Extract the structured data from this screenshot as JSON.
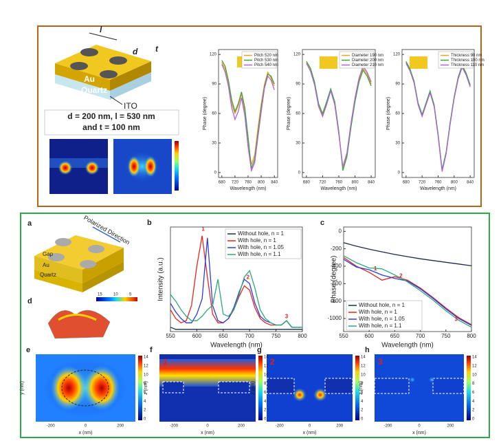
{
  "chart_data": [
    {
      "type": "line",
      "x_label": "Wavelength (nm)",
      "y_label": "Phase (degree)",
      "legend": "upper right",
      "x": [
        680,
        690,
        700,
        710,
        720,
        730,
        740,
        750,
        760,
        770,
        780,
        790,
        800,
        810,
        820,
        830,
        840
      ],
      "series": [
        {
          "name": "Pitch 520 nm",
          "color": "#f5a020",
          "values": [
            112,
            105,
            92,
            70,
            60,
            68,
            80,
            62,
            30,
            8,
            18,
            45,
            70,
            90,
            102,
            96,
            88
          ]
        },
        {
          "name": "Pitch 530 nm",
          "color": "#3aa83a",
          "values": [
            114,
            108,
            94,
            74,
            62,
            70,
            82,
            66,
            36,
            4,
            14,
            40,
            66,
            88,
            100,
            98,
            90
          ]
        },
        {
          "name": "Pitch 540 nm",
          "color": "#b060e0",
          "values": [
            110,
            102,
            88,
            66,
            54,
            62,
            76,
            58,
            26,
            2,
            10,
            36,
            62,
            86,
            98,
            94,
            84
          ]
        }
      ],
      "xlim": [
        670,
        850
      ],
      "ylim": [
        -5,
        125
      ],
      "xticks": [
        680,
        720,
        760,
        800,
        840
      ],
      "yticks": [
        0,
        30,
        60,
        90,
        120
      ]
    },
    {
      "type": "line",
      "x_label": "Wavelength (nm)",
      "y_label": "Phase (degree)",
      "legend": "upper right",
      "x": [
        680,
        690,
        700,
        710,
        720,
        730,
        740,
        750,
        760,
        770,
        780,
        790,
        800,
        810,
        820,
        830,
        840
      ],
      "series": [
        {
          "name": "Diameter 190 nm",
          "color": "#f5a020",
          "values": [
            112,
            104,
            90,
            68,
            58,
            70,
            84,
            70,
            40,
            4,
            18,
            48,
            74,
            94,
            106,
            100,
            90
          ]
        },
        {
          "name": "Diameter 200 nm",
          "color": "#3aa83a",
          "values": [
            113,
            106,
            92,
            70,
            60,
            72,
            85,
            72,
            42,
            2,
            16,
            46,
            72,
            92,
            104,
            98,
            88
          ]
        },
        {
          "name": "Diameter 210 nm",
          "color": "#b060e0",
          "values": [
            111,
            103,
            89,
            67,
            57,
            69,
            83,
            69,
            39,
            6,
            20,
            50,
            76,
            96,
            108,
            102,
            92
          ]
        }
      ],
      "xlim": [
        670,
        850
      ],
      "ylim": [
        -5,
        125
      ],
      "xticks": [
        680,
        720,
        760,
        800,
        840
      ],
      "yticks": [
        0,
        30,
        60,
        90,
        120
      ]
    },
    {
      "type": "line",
      "x_label": "Wavelength (nm)",
      "y_label": "Phase (degree)",
      "legend": "upper right",
      "x": [
        680,
        690,
        700,
        710,
        720,
        730,
        740,
        750,
        760,
        770,
        780,
        790,
        800,
        810,
        820,
        830,
        840
      ],
      "series": [
        {
          "name": "Thickness 90 nm",
          "color": "#f5a020",
          "values": [
            112,
            104,
            92,
            70,
            58,
            70,
            82,
            68,
            38,
            2,
            20,
            50,
            76,
            96,
            108,
            100,
            88
          ]
        },
        {
          "name": "Thickness 100 nm",
          "color": "#3aa83a",
          "values": [
            113,
            105,
            93,
            71,
            59,
            71,
            83,
            69,
            39,
            3,
            21,
            51,
            77,
            97,
            109,
            101,
            89
          ]
        },
        {
          "name": "Thickness 110 nm",
          "color": "#b060e0",
          "values": [
            111,
            103,
            91,
            69,
            57,
            69,
            81,
            67,
            37,
            1,
            19,
            49,
            75,
            95,
            107,
            99,
            87
          ]
        }
      ],
      "xlim": [
        670,
        850
      ],
      "ylim": [
        -5,
        125
      ],
      "xticks": [
        680,
        720,
        760,
        800,
        840
      ],
      "yticks": [
        0,
        30,
        60,
        90,
        120
      ]
    },
    {
      "type": "line",
      "panel": "b",
      "x_label": "Wavelength (nm)",
      "y_label": "Intensity (a.u.)",
      "legend": "upper right",
      "annotations": [
        "1",
        "2",
        "3"
      ],
      "x": [
        550,
        560,
        570,
        580,
        590,
        600,
        610,
        620,
        630,
        640,
        650,
        660,
        670,
        680,
        690,
        700,
        710,
        720,
        730,
        740,
        750,
        760,
        770,
        780,
        790,
        800
      ],
      "series": [
        {
          "name": "Without hole, n = 1",
          "color": "#1a2a4a",
          "values": [
            0.02,
            0.01,
            0.01,
            0.01,
            0.01,
            0.01,
            0.01,
            0.01,
            0.01,
            0.01,
            0.01,
            0.01,
            0.01,
            0.01,
            0.01,
            0.01,
            0.01,
            0.01,
            0.01,
            0.01,
            0.01,
            0.01,
            0.01,
            0.01,
            0.01,
            0.01
          ]
        },
        {
          "name": "With hole, n = 1",
          "color": "#e8241c",
          "values": [
            0.1,
            0.06,
            0.04,
            0.05,
            0.12,
            0.3,
            0.44,
            0.25,
            0.08,
            0.04,
            0.04,
            0.06,
            0.1,
            0.16,
            0.21,
            0.19,
            0.11,
            0.06,
            0.04,
            0.03,
            0.03,
            0.03,
            0.05,
            0.02,
            0.02,
            0.02
          ]
        },
        {
          "name": "With hole, n = 1.05",
          "color": "#2a3ae0",
          "values": [
            0.13,
            0.09,
            0.06,
            0.04,
            0.04,
            0.08,
            0.15,
            0.43,
            0.12,
            0.05,
            0.04,
            0.06,
            0.11,
            0.18,
            0.24,
            0.22,
            0.13,
            0.07,
            0.05,
            0.04,
            0.03,
            0.03,
            0.05,
            0.02,
            0.02,
            0.02
          ]
        },
        {
          "name": "With hole, n = 1.1",
          "color": "#2aa878",
          "values": [
            0.17,
            0.14,
            0.1,
            0.07,
            0.05,
            0.05,
            0.07,
            0.1,
            0.12,
            0.24,
            0.08,
            0.07,
            0.1,
            0.17,
            0.25,
            0.28,
            0.2,
            0.1,
            0.06,
            0.04,
            0.03,
            0.03,
            0.05,
            0.02,
            0.02,
            0.02
          ]
        }
      ],
      "xlim": [
        550,
        800
      ],
      "ylim": [
        0,
        0.48
      ],
      "xticks": [
        550,
        600,
        650,
        700,
        750,
        800
      ]
    },
    {
      "type": "line",
      "panel": "c",
      "x_label": "Wavelength (nm)",
      "y_label": "Phase (degree)",
      "legend": "lower left",
      "annotations": [
        "1",
        "2",
        "3"
      ],
      "x": [
        550,
        575,
        600,
        625,
        650,
        675,
        700,
        725,
        750,
        775,
        800
      ],
      "series": [
        {
          "name": "Without hole, n = 1",
          "color": "#1a2a4a",
          "values": [
            -130,
            -170,
            -205,
            -235,
            -265,
            -290,
            -315,
            -335,
            -355,
            -375,
            -395
          ]
        },
        {
          "name": "With hole, n = 1",
          "color": "#e8241c",
          "values": [
            -300,
            -400,
            -470,
            -560,
            -520,
            -560,
            -650,
            -760,
            -880,
            -990,
            -1070
          ]
        },
        {
          "name": "With hole, n = 1.05",
          "color": "#2a3ae0",
          "values": [
            -320,
            -410,
            -440,
            -500,
            -540,
            -570,
            -660,
            -770,
            -890,
            -1000,
            -1080
          ]
        },
        {
          "name": "With hole, n = 1.1",
          "color": "#2aa878",
          "values": [
            -280,
            -360,
            -420,
            -430,
            -500,
            -580,
            -680,
            -790,
            -910,
            -1020,
            -1100
          ]
        }
      ],
      "xlim": [
        550,
        800
      ],
      "ylim": [
        -1150,
        50
      ],
      "xticks": [
        550,
        600,
        650,
        700,
        750,
        800
      ],
      "yticks": [
        0,
        -200,
        -400,
        -600,
        -800,
        -1000
      ]
    }
  ],
  "figure": {
    "schematic": {
      "l": "l",
      "d": "d",
      "t": "t",
      "au": "Au",
      "quartz": "Quartz",
      "ito": "ITO"
    },
    "params": {
      "line1": "d = 200 nm, l = 530 nm",
      "line2": "and t = 100 nm"
    },
    "panel_a": {
      "label": "a",
      "direction": "Polarized Direction",
      "gap": "Gap",
      "au": "Au",
      "quartz": "Quartz"
    },
    "panel_d": {
      "label": "d",
      "colorbar": [
        "15",
        "10",
        "5"
      ]
    },
    "fields": {
      "labels": [
        "e",
        "f",
        "g",
        "h"
      ],
      "markers": [
        "1",
        "2",
        "3"
      ],
      "x_label": "x (nm)",
      "y_label": "y (nm)",
      "z_label": "z (nm)",
      "xticks": [
        "-200",
        "0",
        "200"
      ],
      "colorbar": [
        "14",
        "12",
        "10",
        "8",
        "6",
        "4",
        "2",
        "0"
      ]
    }
  }
}
